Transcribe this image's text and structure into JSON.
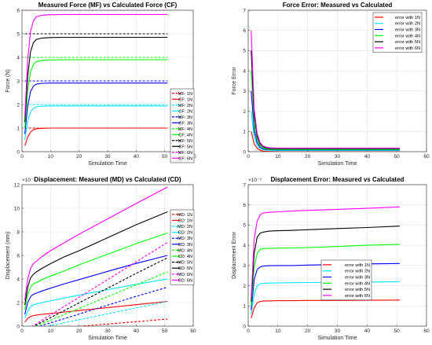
{
  "chart_data": [
    {
      "type": "line",
      "title": "Measured Force (MF) vs Calculated Force (CF)",
      "xlabel": "Simulation Time",
      "ylabel": "Force (N)",
      "xlim": [
        0,
        60
      ],
      "ylim": [
        0,
        6
      ],
      "xticks": [
        "0",
        "10",
        "20",
        "30",
        "40",
        "50",
        "60"
      ],
      "yticks": [
        "0",
        "1",
        "2",
        "3",
        "4",
        "5",
        "6"
      ],
      "legend": "bottom-right",
      "grid": true,
      "x": [
        1,
        2,
        3,
        4,
        5,
        7,
        10,
        15,
        20,
        30,
        40,
        51
      ],
      "series": [
        {
          "name": "MF: 1N",
          "color": "#ff0000",
          "dash": true,
          "values": [
            1,
            1,
            1,
            1,
            1,
            1,
            1,
            1,
            1,
            1,
            1,
            1
          ]
        },
        {
          "name": "CF: 1N",
          "color": "#ff0000",
          "dash": false,
          "values": [
            0.25,
            0.62,
            0.83,
            0.93,
            0.97,
            0.99,
            1.0,
            1.0,
            1.0,
            1.0,
            1.0,
            1.0
          ]
        },
        {
          "name": "MF: 2N",
          "color": "#00e5ff",
          "dash": true,
          "values": [
            2,
            2,
            2,
            2,
            2,
            2,
            2,
            2,
            2,
            2,
            2,
            2
          ]
        },
        {
          "name": "CF: 2N",
          "color": "#00e5ff",
          "dash": false,
          "values": [
            0.5,
            1.3,
            1.68,
            1.84,
            1.9,
            1.93,
            1.94,
            1.94,
            1.94,
            1.94,
            1.94,
            1.94
          ]
        },
        {
          "name": "MF: 3N",
          "color": "#0000ff",
          "dash": true,
          "values": [
            3,
            3,
            3,
            3,
            3,
            3,
            3,
            3,
            3,
            3,
            3,
            3
          ]
        },
        {
          "name": "CF: 3N",
          "color": "#0000ff",
          "dash": false,
          "values": [
            0.75,
            1.95,
            2.55,
            2.78,
            2.86,
            2.9,
            2.91,
            2.91,
            2.91,
            2.91,
            2.91,
            2.91
          ]
        },
        {
          "name": "MF: 4N",
          "color": "#00ff00",
          "dash": true,
          "values": [
            4,
            4,
            4,
            4,
            4,
            4,
            4,
            4,
            4,
            4,
            4,
            4
          ]
        },
        {
          "name": "CF: 4N",
          "color": "#00ff00",
          "dash": false,
          "values": [
            1.0,
            2.6,
            3.4,
            3.7,
            3.82,
            3.87,
            3.89,
            3.9,
            3.9,
            3.9,
            3.9,
            3.9
          ]
        },
        {
          "name": "MF: 5N",
          "color": "#000000",
          "dash": true,
          "values": [
            5,
            5,
            5,
            5,
            5,
            5,
            5,
            5,
            5,
            5,
            5,
            5
          ]
        },
        {
          "name": "CF: 5N",
          "color": "#000000",
          "dash": false,
          "values": [
            1.25,
            3.2,
            4.25,
            4.62,
            4.76,
            4.82,
            4.84,
            4.85,
            4.85,
            4.85,
            4.85,
            4.85
          ]
        },
        {
          "name": "MF: 6N",
          "color": "#ff00ff",
          "dash": true,
          "values": [
            6,
            6,
            6,
            6,
            6,
            6,
            6,
            6,
            6,
            6,
            6,
            6
          ]
        },
        {
          "name": "CF: 6N",
          "color": "#ff00ff",
          "dash": false,
          "values": [
            1.5,
            3.9,
            5.1,
            5.55,
            5.72,
            5.79,
            5.81,
            5.82,
            5.82,
            5.82,
            5.82,
            5.82
          ]
        }
      ]
    },
    {
      "type": "line",
      "title": "Force Error: Measured vs Calculated",
      "xlabel": "Simulation Time",
      "ylabel": "Force Error",
      "xlim": [
        0,
        60
      ],
      "ylim": [
        0,
        7
      ],
      "xticks": [
        "0",
        "10",
        "20",
        "30",
        "40",
        "50",
        "60"
      ],
      "yticks": [
        "0",
        "1",
        "2",
        "3",
        "4",
        "5",
        "6",
        "7"
      ],
      "legend": "top-right",
      "grid": true,
      "x": [
        1,
        2,
        3,
        4,
        5,
        6,
        7,
        10,
        15,
        20,
        30,
        40,
        51
      ],
      "series": [
        {
          "name": "error with 1N",
          "color": "#ff0000",
          "dash": false,
          "values": [
            1.0,
            0.38,
            0.17,
            0.07,
            0.03,
            0.02,
            0.01,
            0.0,
            0.0,
            0.0,
            0.0,
            0.0,
            0.0
          ]
        },
        {
          "name": "error with 2N",
          "color": "#00e5ff",
          "dash": false,
          "values": [
            2.0,
            0.72,
            0.32,
            0.16,
            0.1,
            0.08,
            0.07,
            0.06,
            0.06,
            0.06,
            0.06,
            0.06,
            0.06
          ]
        },
        {
          "name": "error with 3N",
          "color": "#0000ff",
          "dash": false,
          "values": [
            3.0,
            1.05,
            0.45,
            0.22,
            0.14,
            0.11,
            0.1,
            0.09,
            0.09,
            0.09,
            0.09,
            0.09,
            0.09
          ]
        },
        {
          "name": "error with 4N",
          "color": "#00ff00",
          "dash": false,
          "values": [
            4.0,
            1.4,
            0.6,
            0.3,
            0.18,
            0.14,
            0.12,
            0.11,
            0.11,
            0.11,
            0.11,
            0.11,
            0.11
          ]
        },
        {
          "name": "error with 5N",
          "color": "#000000",
          "dash": false,
          "values": [
            5.0,
            1.8,
            0.75,
            0.38,
            0.24,
            0.18,
            0.16,
            0.15,
            0.15,
            0.15,
            0.15,
            0.15,
            0.15
          ]
        },
        {
          "name": "error with 6N",
          "color": "#ff00ff",
          "dash": false,
          "values": [
            6.0,
            2.1,
            0.9,
            0.45,
            0.28,
            0.22,
            0.2,
            0.18,
            0.18,
            0.18,
            0.18,
            0.18,
            0.18
          ]
        }
      ]
    },
    {
      "type": "line",
      "title": "Displacement: Measured (MD) vs Calculated (CD)",
      "xlabel": "Simulation Time",
      "ylabel": "Displacement (mm)",
      "exponent_label": "×10⁻³",
      "xlim": [
        0,
        60
      ],
      "ylim": [
        0,
        0.012
      ],
      "xticks": [
        "0",
        "10",
        "20",
        "30",
        "40",
        "50",
        "60"
      ],
      "yticks": [
        "0",
        "2",
        "4",
        "6",
        "8",
        "10",
        "12"
      ],
      "legend": "right",
      "grid": true,
      "x": [
        1,
        2,
        3,
        4,
        5,
        7,
        10,
        15,
        20,
        30,
        40,
        51
      ],
      "series": [
        {
          "name": "MD: 1N",
          "color": "#ff0000",
          "dash": true,
          "values": [
            -0.0004,
            -0.00037,
            -0.00035,
            -0.00033,
            -0.00031,
            -0.00027,
            -0.00022,
            -0.00012,
            -2e-05,
            0.00018,
            0.00038,
            0.0006
          ]
        },
        {
          "name": "CD: 1N",
          "color": "#ff0000",
          "dash": false,
          "values": [
            0.00035,
            0.00065,
            0.00082,
            0.0009,
            0.00094,
            0.001,
            0.00107,
            0.0012,
            0.00132,
            0.00157,
            0.00182,
            0.0021
          ]
        },
        {
          "name": "MD: 2N",
          "color": "#00e5ff",
          "dash": true,
          "values": [
            -0.0004,
            -0.00035,
            -0.0003,
            -0.00025,
            -0.0002,
            -0.0001,
            5e-05,
            0.0003,
            0.00055,
            0.00105,
            0.00155,
            0.0021
          ]
        },
        {
          "name": "CD: 2N",
          "color": "#00e5ff",
          "dash": false,
          "values": [
            0.0007,
            0.0013,
            0.00165,
            0.0018,
            0.00188,
            0.002,
            0.00215,
            0.0024,
            0.00263,
            0.0031,
            0.00355,
            0.004
          ]
        },
        {
          "name": "MD: 3N",
          "color": "#0000ff",
          "dash": true,
          "values": [
            -0.0004,
            -0.00032,
            -0.00025,
            -0.00017,
            -0.0001,
            5e-05,
            0.00028,
            0.00065,
            0.00103,
            0.00178,
            0.00253,
            0.0033
          ]
        },
        {
          "name": "CD: 3N",
          "color": "#0000ff",
          "dash": false,
          "values": [
            0.001,
            0.002,
            0.0025,
            0.0027,
            0.0028,
            0.00298,
            0.00322,
            0.0036,
            0.00395,
            0.00465,
            0.00532,
            0.006
          ]
        },
        {
          "name": "MD: 4N",
          "color": "#00ff00",
          "dash": true,
          "values": [
            -0.0004,
            -0.0003,
            -0.0002,
            -0.0001,
            0.0,
            0.0002,
            0.0005,
            0.001,
            0.0015,
            0.0025,
            0.0035,
            0.0046
          ]
        },
        {
          "name": "CD: 4N",
          "color": "#00ff00",
          "dash": false,
          "values": [
            0.0014,
            0.0027,
            0.0033,
            0.0036,
            0.0037,
            0.00395,
            0.00425,
            0.0047,
            0.0052,
            0.0061,
            0.007,
            0.0079
          ]
        },
        {
          "name": "MD: 5N",
          "color": "#000000",
          "dash": true,
          "values": [
            -0.0004,
            -0.00028,
            -0.00015,
            -3e-05,
            0.0001,
            0.00035,
            0.00072,
            0.00135,
            0.00197,
            0.00322,
            0.00447,
            0.0058
          ]
        },
        {
          "name": "CD: 5N",
          "color": "#000000",
          "dash": false,
          "values": [
            0.0018,
            0.0033,
            0.0041,
            0.0044,
            0.0046,
            0.0049,
            0.0053,
            0.0059,
            0.0064,
            0.0075,
            0.0086,
            0.0097
          ]
        },
        {
          "name": "MD: 6N",
          "color": "#ff00ff",
          "dash": true,
          "values": [
            -0.0004,
            -0.00025,
            -0.0001,
            5e-05,
            0.0002,
            0.0005,
            0.00095,
            0.0017,
            0.00245,
            0.00395,
            0.00545,
            0.0071
          ]
        },
        {
          "name": "CD: 6N",
          "color": "#ff00ff",
          "dash": false,
          "values": [
            0.0022,
            0.004,
            0.0049,
            0.0053,
            0.0055,
            0.0059,
            0.0064,
            0.0071,
            0.0078,
            0.0091,
            0.0104,
            0.0118
          ]
        }
      ]
    },
    {
      "type": "line",
      "title": "Displacement Error: Measured vs Calculated",
      "xlabel": "Simulation Time",
      "ylabel": "Displacement Error",
      "exponent_label": "×10⁻³",
      "xlim": [
        0,
        60
      ],
      "ylim": [
        0,
        0.007
      ],
      "xticks": [
        "0",
        "10",
        "20",
        "30",
        "40",
        "50",
        "60"
      ],
      "yticks": [
        "0",
        "1",
        "2",
        "3",
        "4",
        "5",
        "6",
        "7"
      ],
      "legend": "bottom-right",
      "grid": true,
      "x": [
        1,
        2,
        3,
        4,
        5,
        7,
        10,
        15,
        20,
        30,
        40,
        51
      ],
      "series": [
        {
          "name": "error with 1N",
          "color": "#ff0000",
          "dash": false,
          "values": [
            0.0004,
            0.0009,
            0.00115,
            0.00122,
            0.00124,
            0.00125,
            0.00126,
            0.00126,
            0.00127,
            0.00127,
            0.00128,
            0.00129
          ]
        },
        {
          "name": "error with 2N",
          "color": "#00e5ff",
          "dash": false,
          "values": [
            0.0006,
            0.0016,
            0.002,
            0.0021,
            0.00212,
            0.00213,
            0.00214,
            0.00215,
            0.00216,
            0.00217,
            0.00218,
            0.0022
          ]
        },
        {
          "name": "error with 3N",
          "color": "#0000ff",
          "dash": false,
          "values": [
            0.0008,
            0.0023,
            0.0028,
            0.00293,
            0.00297,
            0.00299,
            0.003,
            0.003,
            0.00302,
            0.00305,
            0.00308,
            0.0031
          ]
        },
        {
          "name": "error with 4N",
          "color": "#00ff00",
          "dash": false,
          "values": [
            0.001,
            0.0029,
            0.0036,
            0.0038,
            0.00384,
            0.00385,
            0.00386,
            0.00387,
            0.00389,
            0.00394,
            0.004,
            0.00405
          ]
        },
        {
          "name": "error with 5N",
          "color": "#000000",
          "dash": false,
          "values": [
            0.0012,
            0.0036,
            0.0044,
            0.0046,
            0.00465,
            0.0047,
            0.00472,
            0.00474,
            0.00477,
            0.00483,
            0.00488,
            0.00495
          ]
        },
        {
          "name": "error with 6N",
          "color": "#ff00ff",
          "dash": false,
          "values": [
            0.0014,
            0.0043,
            0.0052,
            0.0055,
            0.0056,
            0.00563,
            0.00566,
            0.0057,
            0.00573,
            0.00578,
            0.00583,
            0.0059
          ]
        }
      ]
    }
  ]
}
